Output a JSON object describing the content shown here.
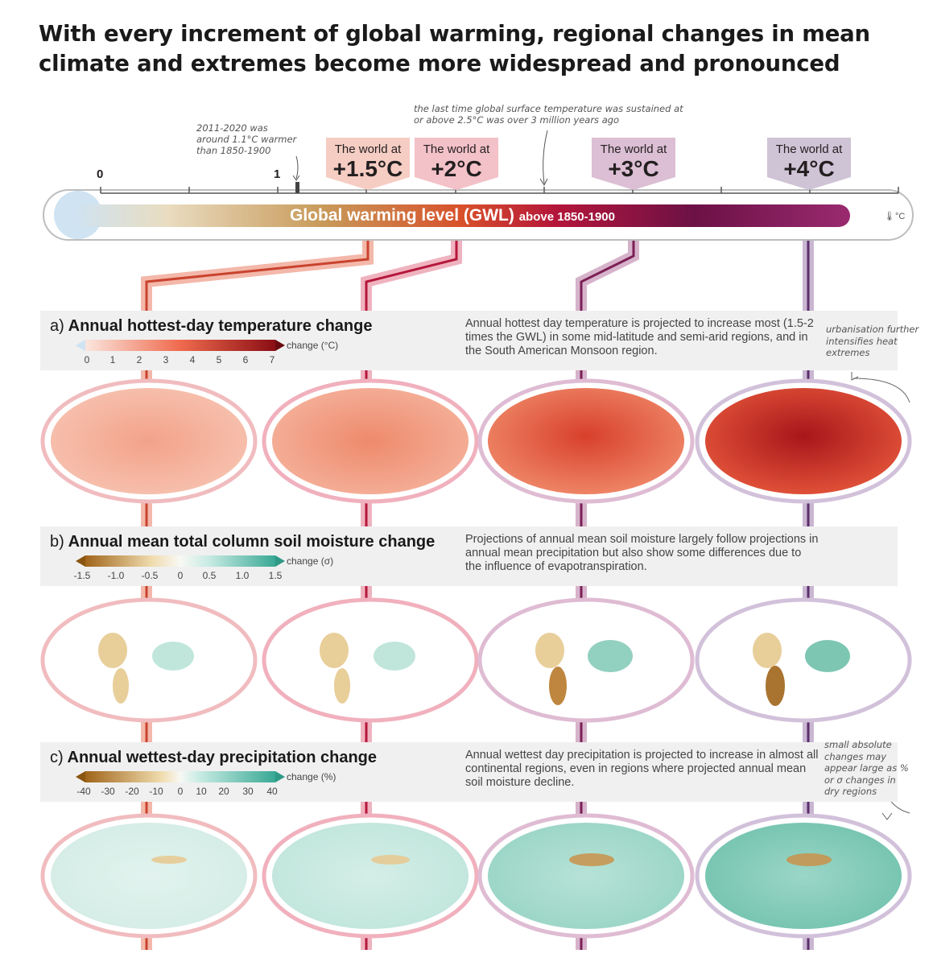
{
  "title": "With every increment of global warming, regional changes in mean climate and extremes become more widespread and pronounced",
  "notes": {
    "recent": "2011-2020 was around 1.1°C warmer than 1850-1900",
    "million": "the last time global surface temperature was sustained at or above 2.5°C was over 3 million years ago"
  },
  "axis": {
    "zero": "0",
    "one": "1"
  },
  "worlds": [
    {
      "line1": "The world at",
      "line2": "+1.5°C",
      "color": "#f6cdc3",
      "line": "#c9432e"
    },
    {
      "line1": "The world at",
      "line2": "+2°C",
      "color": "#f3c1c8",
      "line": "#b5173a"
    },
    {
      "line1": "The world at",
      "line2": "+3°C",
      "color": "#dcbfd4",
      "line": "#7c1f56"
    },
    {
      "line1": "The world at",
      "line2": "+4°C",
      "color": "#cfc3d6",
      "line": "#5b2e6b"
    }
  ],
  "gwl_bar": {
    "label": "Global warming level (GWL)",
    "sub": "above 1850-1900",
    "unit": "°C"
  },
  "panels": [
    {
      "letter": "a)",
      "title": "Annual hottest-day temperature change",
      "desc": "Annual hottest day temperature is projected to increase most (1.5-2 times the GWL) in some mid-latitude and semi-arid regions, and in the South American Monsoon region.",
      "unit": "change (°C)",
      "ticks": [
        "0",
        "1",
        "2",
        "3",
        "4",
        "5",
        "6",
        "7"
      ]
    },
    {
      "letter": "b)",
      "title": "Annual mean total column soil moisture change",
      "desc": "Projections of annual mean soil moisture largely follow projections in annual mean precipitation but also show some differences due to the influence of evapotranspiration.",
      "unit": "change (σ)",
      "ticks": [
        "-1.5",
        "-1.0",
        "-0.5",
        "0",
        "0.5",
        "1.0",
        "1.5"
      ]
    },
    {
      "letter": "c)",
      "title": "Annual wettest-day precipitation change",
      "desc": "Annual wettest day precipitation is projected to increase in almost all continental regions, even in regions where projected annual mean soil moisture decline.",
      "unit": "change (%)",
      "ticks": [
        "-40",
        "-30",
        "-20",
        "-10",
        "0",
        "10",
        "20",
        "30",
        "40"
      ]
    }
  ],
  "side_notes": {
    "urban": "urbanisation further intensifies heat extremes",
    "small": "small absolute changes may appear large as % or σ changes in dry regions"
  }
}
